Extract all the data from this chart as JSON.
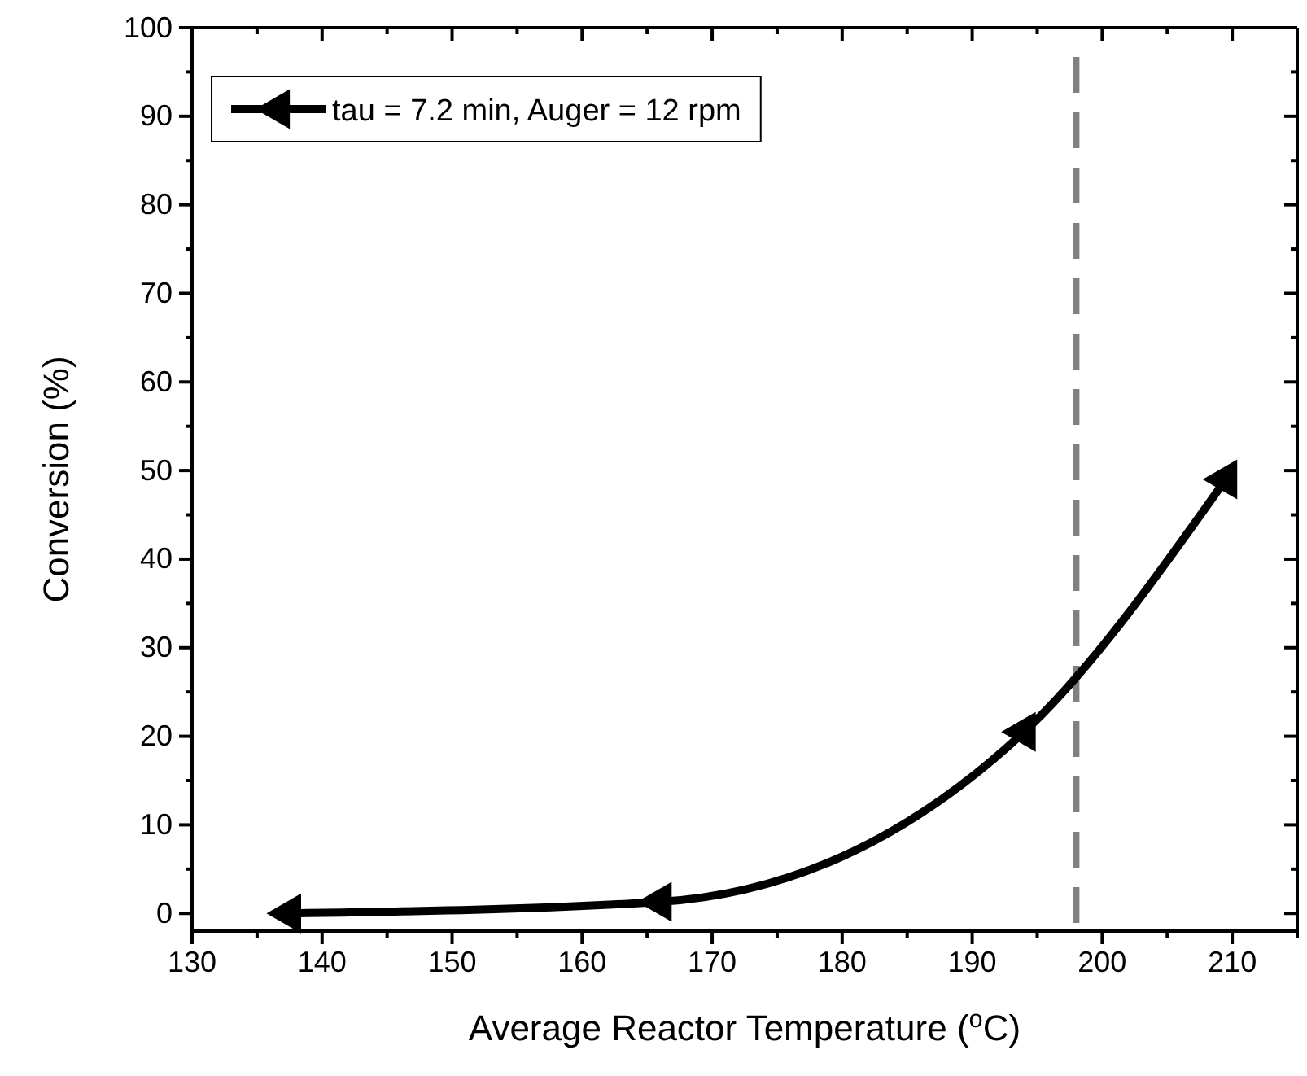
{
  "chart_data": {
    "type": "line",
    "xlabel": "Average Reactor Temperature ($^{o}$C)",
    "ylabel": "Conversion (%)",
    "x": [
      137.5,
      166,
      194,
      209.5
    ],
    "series": [
      {
        "name": "tau = 7.2 min, Auger = 12 rpm",
        "color": "#000000",
        "values": [
          0,
          1.3,
          20.5,
          49
        ]
      }
    ],
    "xlim": [
      130,
      215
    ],
    "xticks": [
      130,
      140,
      150,
      160,
      170,
      180,
      190,
      200,
      210
    ],
    "ylim": [
      -2,
      100
    ],
    "yticks": [
      0,
      10,
      20,
      30,
      40,
      50,
      60,
      70,
      80,
      90,
      100
    ],
    "marker": "triangle",
    "line_style": "solid",
    "legend": "top left",
    "grid": false,
    "ref_lines": [
      {
        "axis": "x",
        "value": 198,
        "color": "#808080",
        "line_style": "dashed"
      }
    ]
  }
}
